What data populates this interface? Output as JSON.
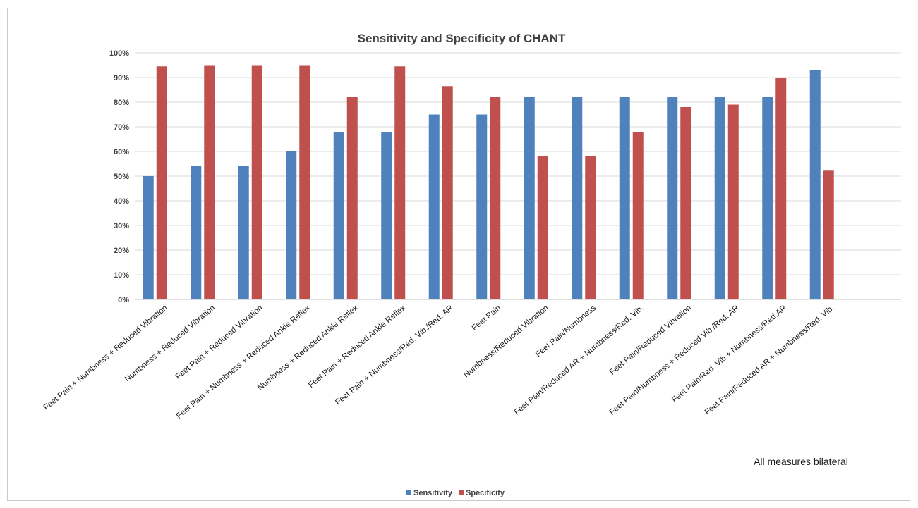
{
  "chart_data": {
    "type": "bar",
    "title": "Sensitivity and Specificity of CHANT",
    "annotation": "All measures bilateral",
    "ylim": [
      0,
      100
    ],
    "yticks": [
      "0%",
      "10%",
      "20%",
      "30%",
      "40%",
      "50%",
      "60%",
      "70%",
      "80%",
      "90%",
      "100%"
    ],
    "grid": true,
    "legend_position": "bottom",
    "categories": [
      "Feet Pain + Numbness + Reduced Vibration",
      "Numbness + Reduced Vibration",
      "Feet Pain + Reduced Vibration",
      "Feet Pain + Numbness + Reduced Ankle Reflex",
      "Numbness + Reduced Ankle Reflex",
      "Feet Pain + Reduced Ankle Reflex",
      "Feet Pain + Numbness/Red. Vib./Red. AR",
      "Feet Pain",
      "Numbness/Reduced Vibration",
      "Feet Pain/Numbness",
      "Feet Pain/Reduced AR + Numbness/Red. Vib.",
      "Feet Pain/Reduced Vibration",
      "Feet Pain/Numbness + Reduced Vib./Red. AR",
      "Feet Pain/Red. Vib + Numbness/Red.AR",
      "Feet Pain/Reduced AR + Numbness/Red. Vib."
    ],
    "series": [
      {
        "name": "Sensitivity",
        "color": "#4f81bd",
        "values": [
          50,
          54,
          54,
          60,
          68,
          68,
          75,
          75,
          82,
          82,
          82,
          82,
          82,
          82,
          93
        ]
      },
      {
        "name": "Specificity",
        "color": "#c0504d",
        "values": [
          94.5,
          95,
          95,
          95,
          82,
          94.5,
          86.5,
          82,
          58,
          58,
          68,
          78,
          79,
          90,
          52.5
        ]
      }
    ]
  }
}
